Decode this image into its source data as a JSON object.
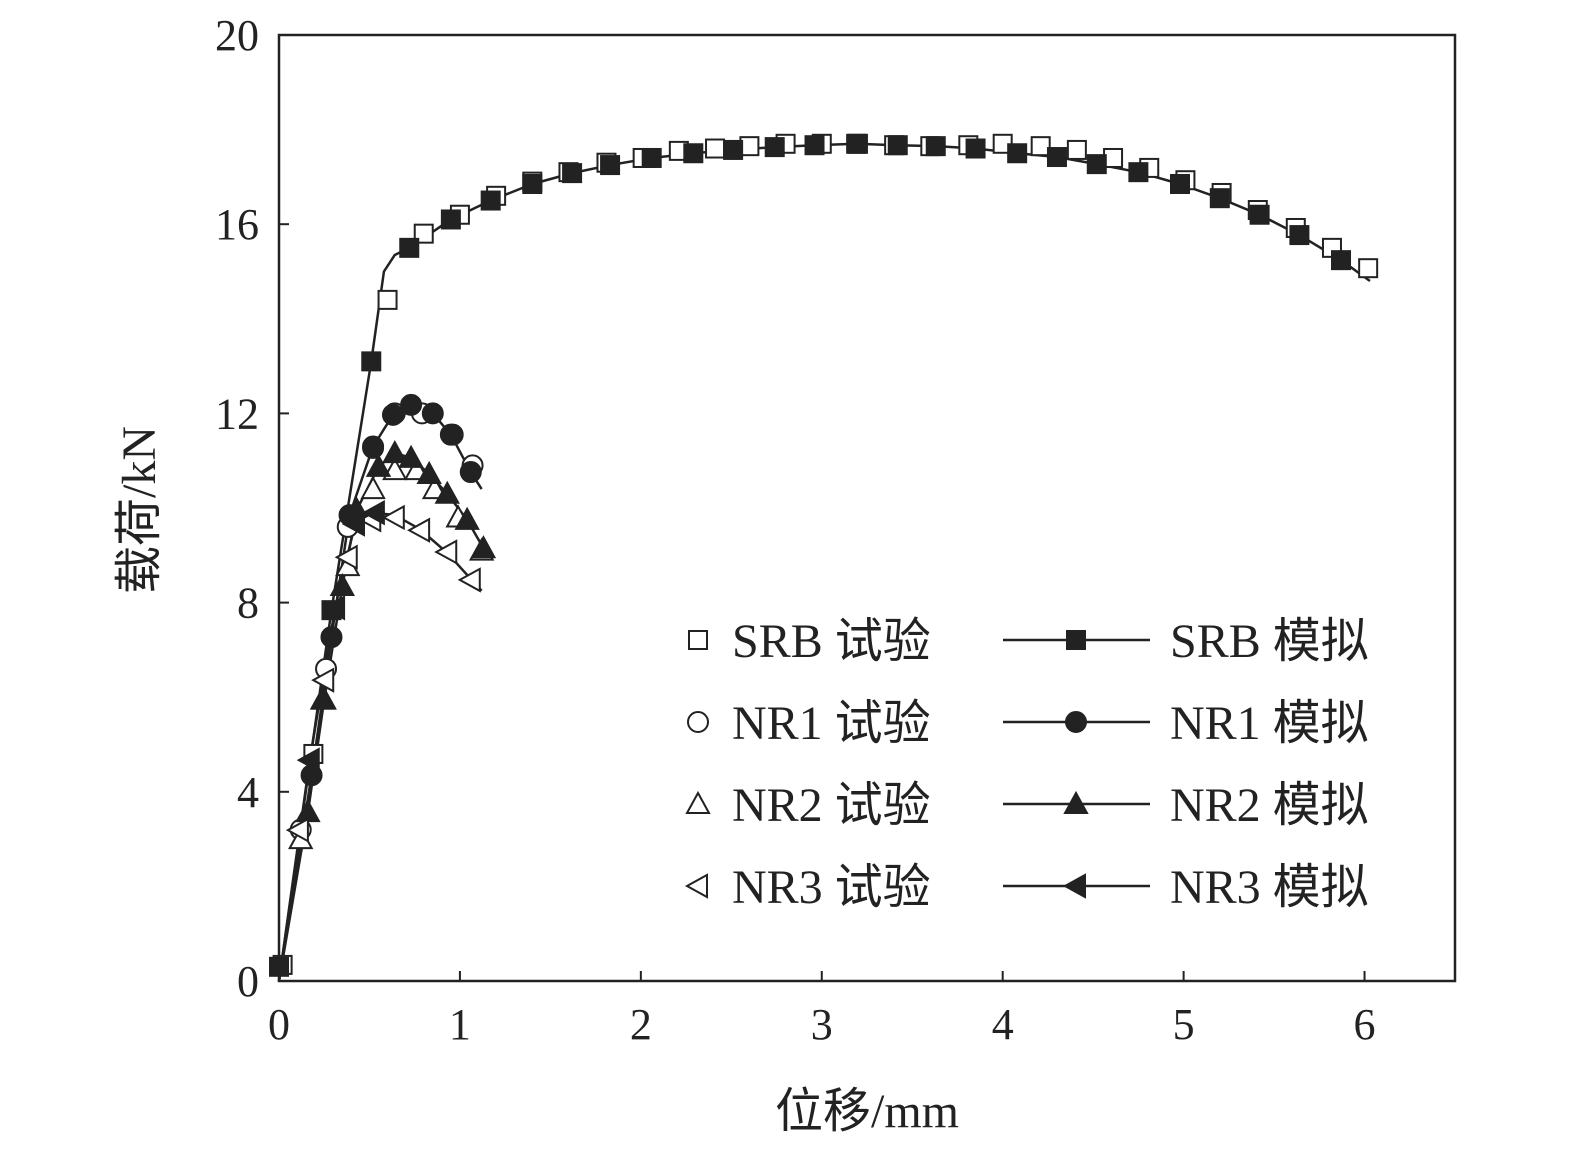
{
  "chart_data": {
    "type": "line",
    "title": "",
    "xlabel": "位移/mm",
    "ylabel": "载荷/kN",
    "xlim": [
      0,
      6.5
    ],
    "ylim": [
      0,
      20
    ],
    "xticks": [
      "0",
      "1",
      "2",
      "3",
      "4",
      "5",
      "6"
    ],
    "yticks": [
      "0",
      "4",
      "8",
      "12",
      "16",
      "20"
    ],
    "grid": false,
    "legend_position": "bottom-right",
    "series": [
      {
        "name": "SRB 试验",
        "marker": "square-open",
        "line": false,
        "x": [
          0.02,
          0.19,
          0.6,
          0.8,
          1.0,
          1.2,
          1.4,
          1.6,
          1.81,
          2.01,
          2.21,
          2.41,
          2.6,
          2.8,
          3.0,
          3.2,
          3.4,
          3.6,
          3.81,
          4.0,
          4.21,
          4.41,
          4.61,
          4.81,
          5.01,
          5.21,
          5.41,
          5.62,
          5.82,
          6.02
        ],
        "y": [
          0.34,
          4.8,
          14.4,
          15.8,
          16.2,
          16.6,
          16.9,
          17.1,
          17.3,
          17.4,
          17.55,
          17.6,
          17.65,
          17.7,
          17.7,
          17.7,
          17.67,
          17.65,
          17.67,
          17.7,
          17.65,
          17.57,
          17.4,
          17.19,
          16.93,
          16.66,
          16.3,
          15.92,
          15.5,
          15.07
        ]
      },
      {
        "name": "SRB 模拟",
        "marker": "square-filled",
        "line": true,
        "x": [
          0.0,
          0.29,
          0.51,
          0.72,
          0.95,
          1.17,
          1.4,
          1.62,
          1.83,
          2.06,
          2.29,
          2.51,
          2.74,
          2.96,
          3.19,
          3.42,
          3.63,
          3.85,
          4.08,
          4.3,
          4.52,
          4.75,
          4.98,
          5.2,
          5.42,
          5.64,
          5.87
        ],
        "y": [
          0.3,
          7.84,
          13.1,
          15.5,
          16.1,
          16.5,
          16.85,
          17.08,
          17.25,
          17.4,
          17.5,
          17.57,
          17.63,
          17.67,
          17.7,
          17.67,
          17.65,
          17.6,
          17.5,
          17.42,
          17.27,
          17.1,
          16.85,
          16.55,
          16.2,
          15.77,
          15.24
        ],
        "line_x": [
          0.0,
          0.29,
          0.51,
          0.58,
          0.64,
          0.72,
          0.95,
          1.17,
          1.4,
          1.62,
          1.83,
          2.06,
          2.29,
          2.51,
          2.74,
          2.96,
          3.19,
          3.42,
          3.63,
          3.85,
          4.08,
          4.3,
          4.52,
          4.75,
          4.98,
          5.2,
          5.42,
          5.64,
          5.87,
          6.03
        ],
        "line_y": [
          0.0,
          7.84,
          13.1,
          15.0,
          15.35,
          15.5,
          16.1,
          16.5,
          16.85,
          17.08,
          17.25,
          17.4,
          17.5,
          17.57,
          17.63,
          17.67,
          17.7,
          17.67,
          17.65,
          17.6,
          17.5,
          17.42,
          17.27,
          17.1,
          16.85,
          16.55,
          16.2,
          15.77,
          15.24,
          14.8
        ]
      },
      {
        "name": "NR1 试验",
        "marker": "circle-open",
        "line": false,
        "x": [
          0.12,
          0.26,
          0.38,
          0.52,
          0.64,
          0.79,
          0.96,
          1.07
        ],
        "y": [
          3.2,
          6.6,
          9.6,
          11.27,
          12.0,
          12.0,
          11.55,
          10.9
        ]
      },
      {
        "name": "NR1 模拟",
        "marker": "circle-filled",
        "line": true,
        "x": [
          0.18,
          0.29,
          0.39,
          0.52,
          0.63,
          0.73,
          0.85,
          0.95,
          1.06
        ],
        "y": [
          4.35,
          7.27,
          9.85,
          11.3,
          11.97,
          12.18,
          12.0,
          11.55,
          10.76
        ],
        "line_x": [
          0.0,
          0.18,
          0.29,
          0.39,
          0.52,
          0.63,
          0.73,
          0.85,
          0.95,
          1.06,
          1.12
        ],
        "line_y": [
          0.0,
          4.35,
          7.27,
          9.85,
          11.3,
          11.97,
          12.18,
          12.0,
          11.55,
          10.76,
          10.4
        ]
      },
      {
        "name": "NR2 试验",
        "marker": "triangle-up-open",
        "line": false,
        "x": [
          0.12,
          0.24,
          0.38,
          0.52,
          0.64,
          0.76,
          0.86,
          0.99,
          1.12
        ],
        "y": [
          3.0,
          5.95,
          8.77,
          10.4,
          10.8,
          10.8,
          10.4,
          9.8,
          9.1
        ]
      },
      {
        "name": "NR2 模拟",
        "marker": "triangle-up-filled",
        "line": true,
        "x": [
          0.16,
          0.25,
          0.35,
          0.43,
          0.55,
          0.64,
          0.73,
          0.83,
          0.93,
          1.04,
          1.13
        ],
        "y": [
          3.57,
          5.95,
          8.35,
          9.96,
          10.87,
          11.16,
          11.06,
          10.72,
          10.3,
          9.75,
          9.15
        ],
        "line_x": [
          0.0,
          0.16,
          0.25,
          0.35,
          0.43,
          0.55,
          0.64,
          0.73,
          0.83,
          0.93,
          1.04,
          1.13
        ],
        "line_y": [
          0.0,
          3.57,
          5.95,
          8.35,
          9.96,
          10.87,
          11.16,
          11.06,
          10.72,
          10.3,
          9.75,
          9.15
        ]
      },
      {
        "name": "NR3 试验",
        "marker": "triangle-left-open",
        "line": false,
        "x": [
          0.11,
          0.25,
          0.38,
          0.51,
          0.64,
          0.78,
          0.93,
          1.06
        ],
        "y": [
          3.19,
          6.36,
          8.96,
          9.75,
          9.8,
          9.53,
          9.07,
          8.48
        ]
      },
      {
        "name": "NR3 模拟",
        "marker": "triangle-left-filled",
        "line": true,
        "x": [
          0.17,
          0.31,
          0.42,
          0.53
        ],
        "y": [
          4.67,
          7.89,
          9.66,
          9.9
        ],
        "line_x": [
          0.0,
          0.17,
          0.31,
          0.42,
          0.53,
          0.64,
          0.78,
          0.93,
          1.06,
          1.12
        ],
        "line_y": [
          0.0,
          4.67,
          7.89,
          9.66,
          9.9,
          9.85,
          9.55,
          9.05,
          8.5,
          8.25
        ]
      }
    ]
  }
}
